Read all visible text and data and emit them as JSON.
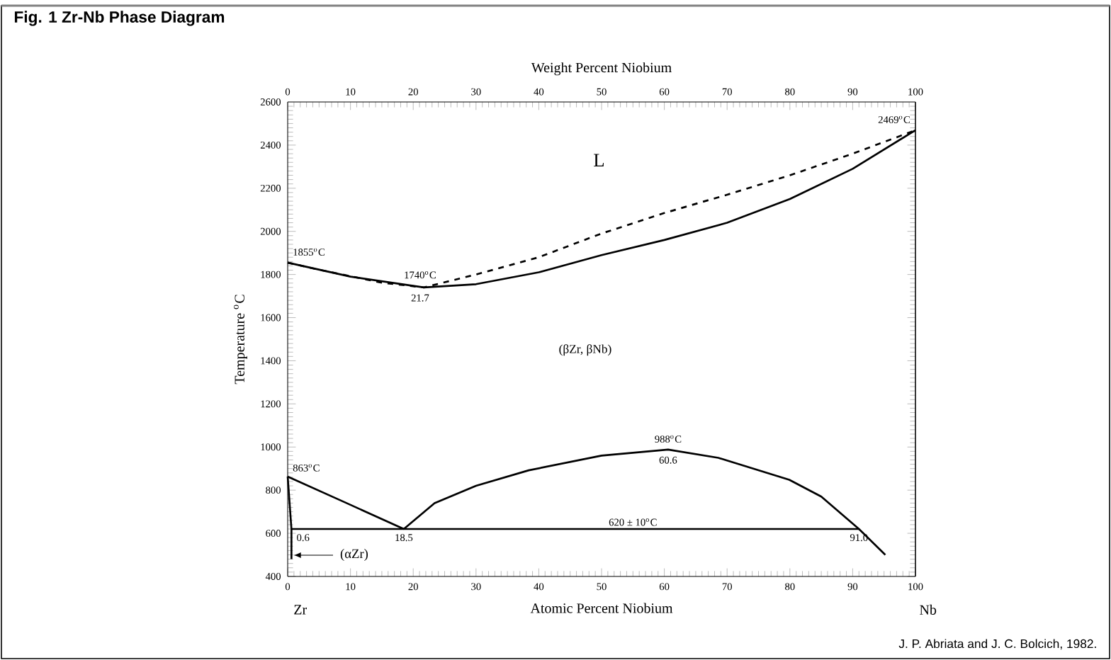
{
  "chart_data": {
    "type": "line",
    "title": "Fig. 1   Zr-Nb Phase Diagram",
    "xlabel": "Atomic Percent Niobium",
    "ylabel": "Temperature $^{o}$C",
    "x2label": "Weight Percent Niobium",
    "xlim": [
      0,
      100
    ],
    "xticks": [
      0,
      10,
      20,
      30,
      40,
      50,
      60,
      70,
      80,
      90,
      100
    ],
    "x2lim": [
      0,
      100
    ],
    "x2ticks": [
      0,
      10,
      20,
      30,
      40,
      50,
      60,
      70,
      80,
      90,
      100
    ],
    "ylim": [
      400,
      2600
    ],
    "yticks": [
      400,
      600,
      800,
      1000,
      1200,
      1400,
      1600,
      1800,
      2000,
      2200,
      2400,
      2600
    ],
    "series": [
      {
        "color": "#000000",
        "line_style": "dashed",
        "x": [
          0,
          5,
          10,
          15,
          21.7,
          30,
          40,
          50,
          60,
          70,
          80,
          90,
          100
        ],
        "values": [
          1855,
          1822,
          1792,
          1762,
          1740,
          1800,
          1880,
          1990,
          2085,
          2170,
          2260,
          2360,
          2469
        ]
      },
      {
        "color": "#000000",
        "line_style": "solid",
        "x": [
          0,
          10,
          21.7,
          30,
          40,
          50,
          60,
          70,
          80,
          90,
          100
        ],
        "values": [
          1855,
          1790,
          1740,
          1755,
          1810,
          1890,
          1960,
          2040,
          2150,
          2290,
          2469
        ]
      },
      {
        "color": "#000000",
        "line_style": "solid",
        "x": [
          0,
          9,
          18.5
        ],
        "values": [
          863,
          745,
          620
        ]
      },
      {
        "color": "#000000",
        "line_style": "solid",
        "x": [
          18.5,
          23.4,
          30,
          38.4,
          50,
          60.6,
          68.6,
          79.9,
          85,
          91,
          95.2
        ],
        "values": [
          620,
          740,
          820,
          892,
          960,
          988,
          950,
          848,
          770,
          620,
          500
        ]
      },
      {
        "color": "#000000",
        "line_style": "solid",
        "x": [
          0.6,
          91
        ],
        "values": [
          620,
          620
        ]
      },
      {
        "color": "#000000",
        "line_style": "solid",
        "x": [
          0,
          0.6,
          0.6
        ],
        "values": [
          863,
          620,
          480
        ]
      }
    ],
    "annotations": [
      {
        "text": "2469$^{o}$C",
        "x": 100,
        "y": 2469
      },
      {
        "text": "1855$^{o}$C",
        "x": 0,
        "y": 1855
      },
      {
        "text": "1740$^{o}$C",
        "x": 21.7,
        "y": 1740
      },
      {
        "text": "21.7",
        "x": 21.7,
        "y": 1740
      },
      {
        "text": "988$^{o}$C",
        "x": 60.6,
        "y": 988
      },
      {
        "text": "60.6",
        "x": 60.6,
        "y": 988
      },
      {
        "text": "863$^{o}$C",
        "x": 0,
        "y": 863
      },
      {
        "text": "620 ± 10$^{o}$C",
        "x": 55,
        "y": 620
      },
      {
        "text": "0.6",
        "x": 0.6,
        "y": 620
      },
      {
        "text": "18.5",
        "x": 18.5,
        "y": 620
      },
      {
        "text": "91.0",
        "x": 91,
        "y": 620
      },
      "L",
      "(βZr,  βNb)",
      "(αZr)",
      "Zr",
      "Nb",
      "J. P. Abriata and J. C. Bolcich, 1982."
    ]
  }
}
